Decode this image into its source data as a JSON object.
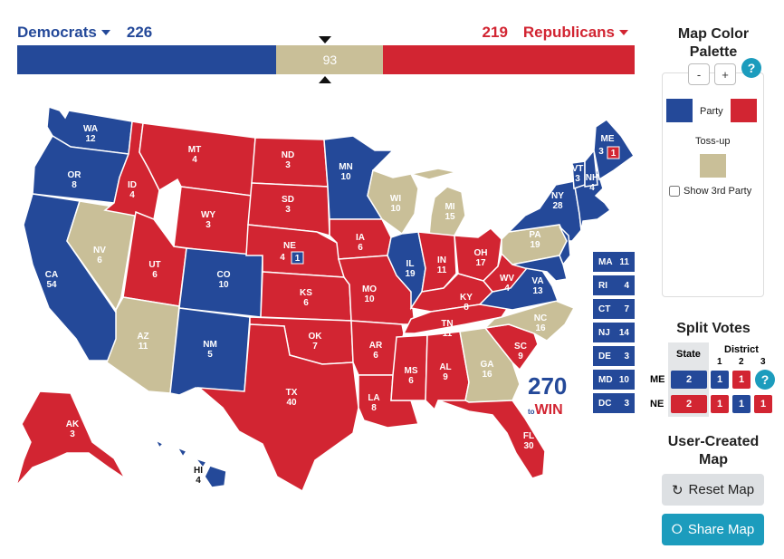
{
  "header": {
    "dem_label": "Democrats",
    "dem_total": "226",
    "rep_label": "Republicans",
    "rep_total": "219",
    "tossup_total": "93"
  },
  "ev_shares": {
    "dem": 226,
    "toss": 93,
    "rep": 219
  },
  "colors": {
    "dem": "#244999",
    "rep": "#d22532",
    "tossup": "#c9bf98",
    "accent": "#1c9cbd"
  },
  "states": {
    "WA": "12",
    "OR": "8",
    "CA": "54",
    "NV": "6",
    "ID": "4",
    "MT": "4",
    "WY": "3",
    "UT": "6",
    "AZ": "11",
    "CO": "10",
    "NM": "5",
    "ND": "3",
    "SD": "3",
    "NE": "4",
    "KS": "6",
    "OK": "7",
    "TX": "40",
    "MN": "10",
    "IA": "6",
    "MO": "10",
    "AR": "6",
    "LA": "8",
    "WI": "10",
    "IL": "19",
    "MI": "15",
    "IN": "11",
    "OH": "17",
    "KY": "8",
    "TN": "11",
    "MS": "6",
    "AL": "9",
    "GA": "16",
    "FL": "30",
    "SC": "9",
    "NC": "16",
    "VA": "13",
    "WV": "4",
    "PA": "19",
    "NY": "28",
    "VT": "3",
    "NH": "4",
    "ME": "3",
    "AK": "3",
    "HI": "4",
    "NE_district": "1",
    "ME_district": "1"
  },
  "small_states": [
    {
      "abbr": "MA",
      "ev": "11"
    },
    {
      "abbr": "RI",
      "ev": "4"
    },
    {
      "abbr": "CT",
      "ev": "7"
    },
    {
      "abbr": "NJ",
      "ev": "14"
    },
    {
      "abbr": "DE",
      "ev": "3"
    },
    {
      "abbr": "MD",
      "ev": "10"
    },
    {
      "abbr": "DC",
      "ev": "3"
    }
  ],
  "logo": {
    "num": "270",
    "to": "to",
    "win": "WIN"
  },
  "palette": {
    "title": "Map Color Palette",
    "minus": "-",
    "plus": "+",
    "help": "?",
    "party_label": "Party",
    "tossup_label": "Toss-up",
    "third_party_label": "Show 3rd Party"
  },
  "split_votes": {
    "title": "Split Votes",
    "state_header": "State",
    "district_header": "District",
    "districts": [
      "1",
      "2",
      "3"
    ],
    "rows": [
      {
        "state": "ME",
        "state_ev": "2",
        "d1": "1",
        "d2": "1"
      },
      {
        "state": "NE",
        "state_ev": "2",
        "d1": "1",
        "d2": "1",
        "d3": "1"
      }
    ],
    "help": "?"
  },
  "user_map": {
    "title": "User-Created Map",
    "reset_label": "Reset Map",
    "share_label": "Share Map"
  }
}
